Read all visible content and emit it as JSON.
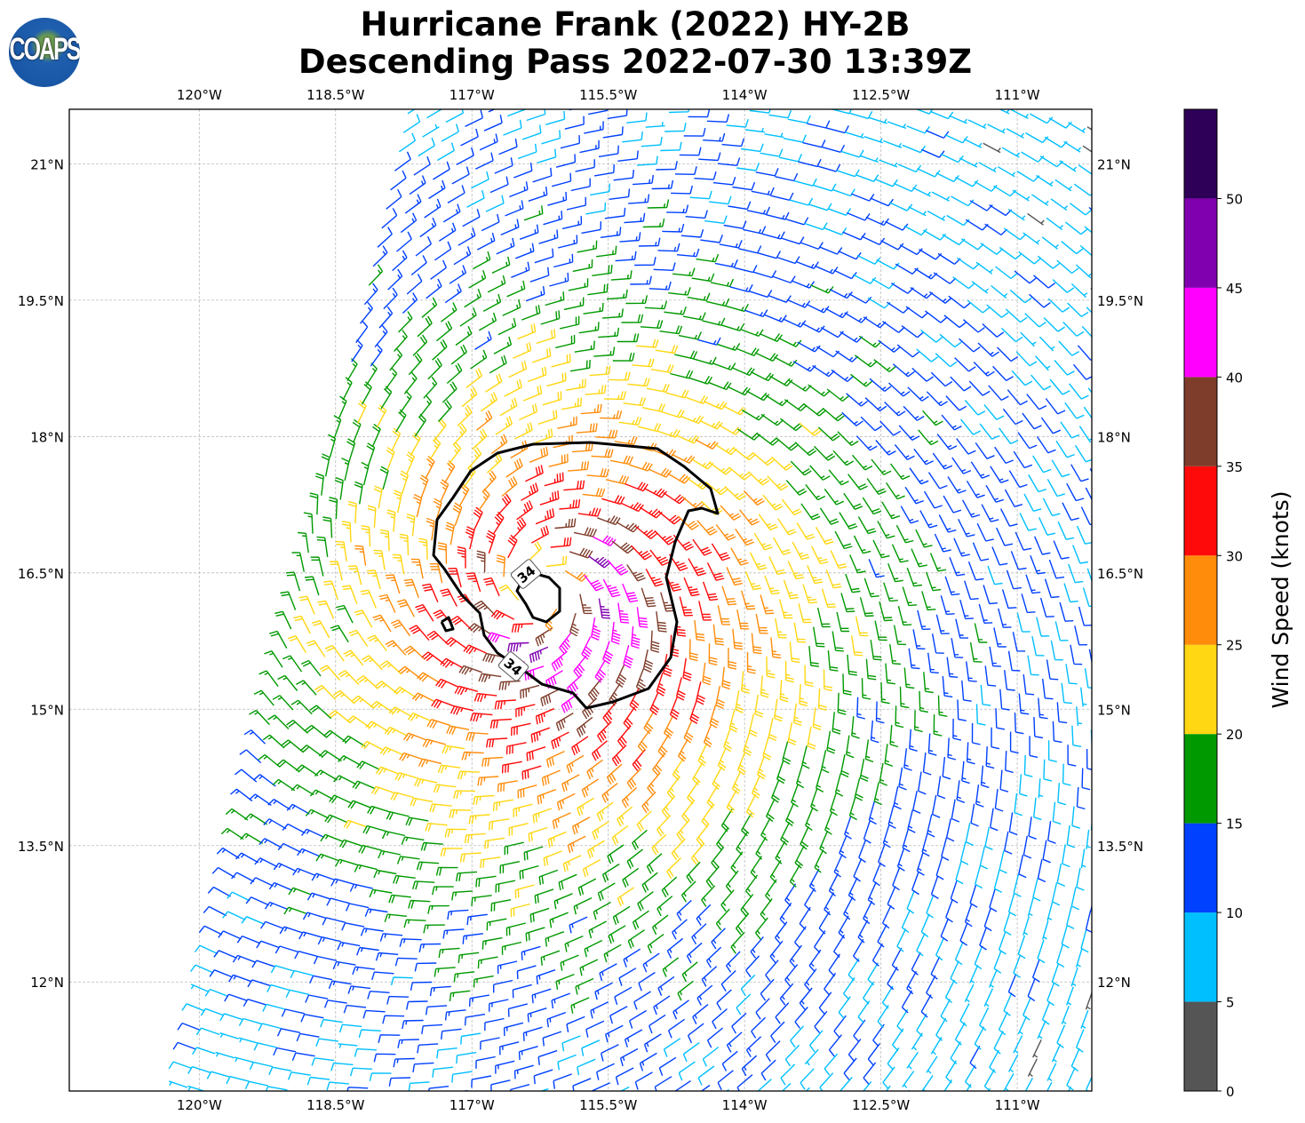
{
  "title": {
    "line1": "Hurricane Frank (2022) HY-2B",
    "line2": "Descending Pass 2022-07-30 13:39Z"
  },
  "logo": {
    "text": "COAPS"
  },
  "chart_data": {
    "type": "wind-barb map",
    "lon_ticks": [
      "120°W",
      "118.5°W",
      "117°W",
      "115.5°W",
      "114°W",
      "112.5°W",
      "111°W"
    ],
    "lon_values": [
      -120,
      -118.5,
      -117,
      -115.5,
      -114,
      -112.5,
      -111
    ],
    "lat_ticks": [
      "21°N",
      "19.5°N",
      "18°N",
      "16.5°N",
      "15°N",
      "13.5°N",
      "12°N"
    ],
    "lat_values": [
      21,
      19.5,
      18,
      16.5,
      15,
      13.5,
      12
    ],
    "lon_range": [
      -121.43,
      -110.18
    ],
    "lat_range": [
      10.8,
      21.6
    ],
    "grid": true,
    "contour": {
      "level_label": "34",
      "color": "#000000"
    },
    "colorbar": {
      "label": "Wind Speed (knots)",
      "range": [
        0,
        55
      ],
      "ticks": [
        "0",
        "5",
        "10",
        "15",
        "20",
        "25",
        "30",
        "35",
        "40",
        "45",
        "50"
      ],
      "tick_values": [
        0,
        5,
        10,
        15,
        20,
        25,
        30,
        35,
        40,
        45,
        50
      ],
      "colors": [
        "#555555",
        "#00bfff",
        "#0040ff",
        "#009900",
        "#ffd712",
        "#ff8c0a",
        "#ff0a0a",
        "#7e3c2a",
        "#ff00ff",
        "#8000b0",
        "#2e0058"
      ]
    }
  }
}
